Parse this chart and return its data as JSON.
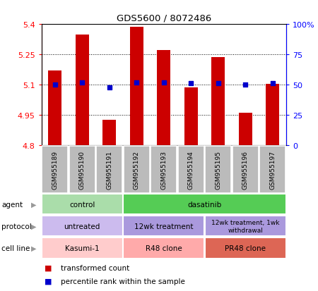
{
  "title": "GDS5600 / 8072486",
  "samples": [
    "GSM955189",
    "GSM955190",
    "GSM955191",
    "GSM955192",
    "GSM955193",
    "GSM955194",
    "GSM955195",
    "GSM955196",
    "GSM955197"
  ],
  "bar_values": [
    5.17,
    5.35,
    4.925,
    5.385,
    5.27,
    5.085,
    5.235,
    4.96,
    5.105
  ],
  "percentile_values": [
    50,
    52,
    48,
    52,
    52,
    51,
    51,
    50,
    51
  ],
  "ylim_left": [
    4.8,
    5.4
  ],
  "ylim_right": [
    0,
    100
  ],
  "yticks_left": [
    4.8,
    4.95,
    5.1,
    5.25,
    5.4
  ],
  "yticks_right": [
    0,
    25,
    50,
    75,
    100
  ],
  "ytick_labels_left": [
    "4.8",
    "4.95",
    "5.1",
    "5.25",
    "5.4"
  ],
  "ytick_labels_right": [
    "0",
    "25",
    "50",
    "75",
    "100%"
  ],
  "bar_color": "#cc0000",
  "dot_color": "#0000cc",
  "bar_bottom": 4.8,
  "sample_box_color": "#bbbbbb",
  "agent_groups": [
    {
      "label": "control",
      "start": 0,
      "end": 3,
      "color": "#aaddaa"
    },
    {
      "label": "dasatinib",
      "start": 3,
      "end": 9,
      "color": "#55cc55"
    }
  ],
  "protocol_groups": [
    {
      "label": "untreated",
      "start": 0,
      "end": 3,
      "color": "#ccbbee"
    },
    {
      "label": "12wk treatment",
      "start": 3,
      "end": 6,
      "color": "#aa99dd"
    },
    {
      "label": "12wk treatment, 1wk\nwithdrawal",
      "start": 6,
      "end": 9,
      "color": "#aa99dd"
    }
  ],
  "cellline_groups": [
    {
      "label": "Kasumi-1",
      "start": 0,
      "end": 3,
      "color": "#ffcccc"
    },
    {
      "label": "R48 clone",
      "start": 3,
      "end": 6,
      "color": "#ffaaaa"
    },
    {
      "label": "PR48 clone",
      "start": 6,
      "end": 9,
      "color": "#dd6655"
    }
  ],
  "row_labels": [
    "agent",
    "protocol",
    "cell line"
  ],
  "legend_bar_label": "transformed count",
  "legend_dot_label": "percentile rank within the sample"
}
